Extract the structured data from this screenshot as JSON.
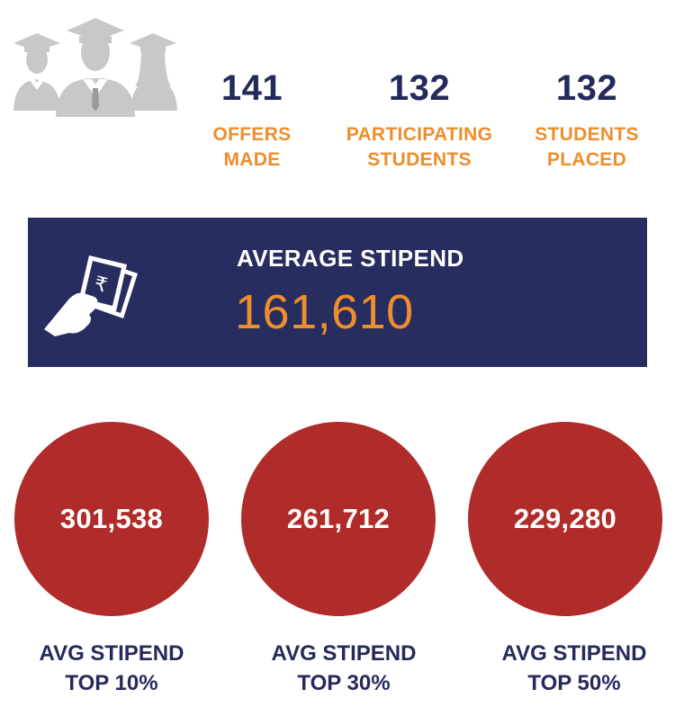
{
  "colors": {
    "navy": "#282d60",
    "orange": "#ee8d2b",
    "red": "#b02c2a",
    "icon_gray": "#c8c8c8"
  },
  "icons": {
    "graduates": "graduates-icon",
    "money": "hand-money-icon"
  },
  "stats": [
    {
      "value": "141",
      "label": "OFFERS\nMADE"
    },
    {
      "value": "132",
      "label": "PARTICIPATING\nSTUDENTS"
    },
    {
      "value": "132",
      "label": "STUDENTS\nPLACED"
    }
  ],
  "average": {
    "title": "AVERAGE STIPEND",
    "value": "161,610",
    "currency_symbol": "₹"
  },
  "tiers": [
    {
      "value": "301,538",
      "label": "AVG STIPEND\nTOP 10%"
    },
    {
      "value": "261,712",
      "label": "AVG STIPEND\nTOP 30%"
    },
    {
      "value": "229,280",
      "label": "AVG STIPEND\nTOP 50%"
    }
  ]
}
